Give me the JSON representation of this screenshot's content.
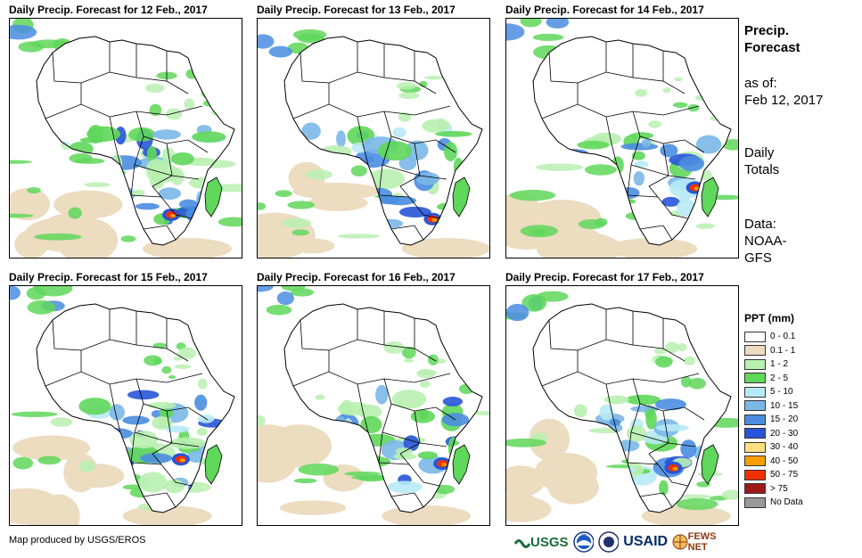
{
  "panels": [
    {
      "title": "Daily Precip. Forecast for 12 Feb., 2017",
      "seed": 1
    },
    {
      "title": "Daily Precip. Forecast for 13 Feb., 2017",
      "seed": 2
    },
    {
      "title": "Daily Precip. Forecast for 14 Feb., 2017",
      "seed": 3
    },
    {
      "title": "Daily Precip. Forecast for 15 Feb., 2017",
      "seed": 4
    },
    {
      "title": "Daily Precip. Forecast for 16 Feb., 2017",
      "seed": 5
    },
    {
      "title": "Daily Precip. Forecast for 17 Feb., 2017",
      "seed": 6
    }
  ],
  "side": {
    "title_line1": "Precip.",
    "title_line2": "Forecast",
    "asof_line1": "as of:",
    "asof_line2": "Feb 12, 2017",
    "totals_line1": "Daily",
    "totals_line2": "Totals",
    "data_line1": "Data:",
    "data_line2": "NOAA-",
    "data_line3": "GFS"
  },
  "legend": {
    "title": "PPT (mm)",
    "items": [
      {
        "label": "0 - 0.1",
        "color": "#ffffff"
      },
      {
        "label": "0.1 - 1",
        "color": "#ecdcc0"
      },
      {
        "label": "1 - 2",
        "color": "#b8f0b0"
      },
      {
        "label": "2 - 5",
        "color": "#5fd75a"
      },
      {
        "label": "5 - 10",
        "color": "#b8eaf5"
      },
      {
        "label": "10 - 15",
        "color": "#7ab8e8"
      },
      {
        "label": "15 - 20",
        "color": "#4a8de0"
      },
      {
        "label": "20 - 30",
        "color": "#2855d8"
      },
      {
        "label": "30 - 40",
        "color": "#ffe080"
      },
      {
        "label": "40 - 50",
        "color": "#f5a000"
      },
      {
        "label": "50 - 75",
        "color": "#f03000"
      },
      {
        "label": "> 75",
        "color": "#a01818"
      },
      {
        "label": "No Data",
        "color": "#999999"
      }
    ]
  },
  "footer": "Map produced by USGS/EROS",
  "logos": {
    "usgs": "USGS",
    "noaa": "NOAA",
    "usaid": "USAID",
    "fewsnet": "FEWS NET"
  }
}
